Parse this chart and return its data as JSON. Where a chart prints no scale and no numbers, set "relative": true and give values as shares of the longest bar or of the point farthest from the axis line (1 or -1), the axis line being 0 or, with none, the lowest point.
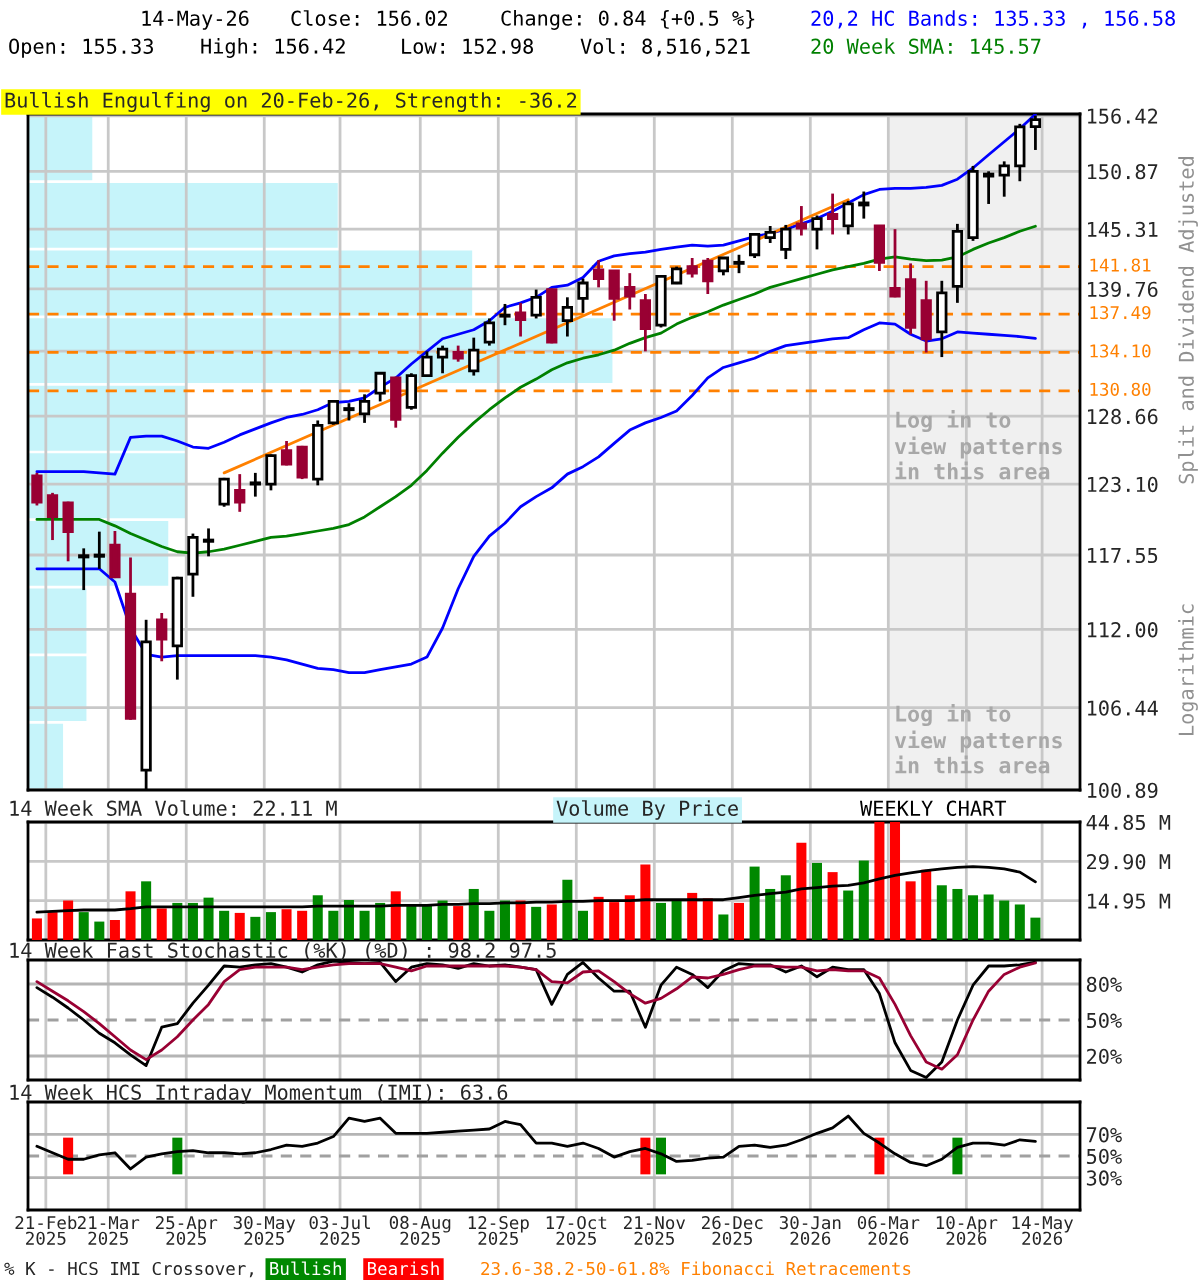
{
  "chart_data": [
    {
      "type": "candlestick",
      "title": "Bullish Engulfing on 20-Feb-26, Strength: -36.2",
      "ylabel": "Split and Dividend Adjusted",
      "annotations": [
        "14-May-26",
        "Close: 156.02",
        "Change: 0.84 {+0.5 %}",
        "Open: 155.33",
        "High: 156.42",
        "Low: 152.98",
        "Vol: 8,516,521",
        "Log in to\nview patterns\nin this area",
        "Log in to\nview patterns\nin this area",
        "Logarithmic"
      ],
      "x": [
        "2025-02-17",
        "2025-02-24",
        "2025-03-03",
        "2025-03-10",
        "2025-03-17",
        "2025-03-24",
        "2025-03-31",
        "2025-04-07",
        "2025-04-14",
        "2025-04-21",
        "2025-04-28",
        "2025-05-05",
        "2025-05-12",
        "2025-05-19",
        "2025-05-26",
        "2025-06-02",
        "2025-06-09",
        "2025-06-16",
        "2025-06-23",
        "2025-06-30",
        "2025-07-07",
        "2025-07-14",
        "2025-07-21",
        "2025-07-28",
        "2025-08-04",
        "2025-08-11",
        "2025-08-18",
        "2025-08-25",
        "2025-09-01",
        "2025-09-08",
        "2025-09-15",
        "2025-09-22",
        "2025-09-29",
        "2025-10-06",
        "2025-10-13",
        "2025-10-20",
        "2025-10-27",
        "2025-11-03",
        "2025-11-10",
        "2025-11-17",
        "2025-11-24",
        "2025-12-01",
        "2025-12-08",
        "2025-12-15",
        "2025-12-22",
        "2025-12-29",
        "2026-01-05",
        "2026-01-12",
        "2026-01-19",
        "2026-01-26",
        "2026-02-02",
        "2026-02-09",
        "2026-02-16",
        "2026-02-23",
        "2026-03-02",
        "2026-03-09",
        "2026-03-16",
        "2026-03-23",
        "2026-03-30",
        "2026-04-06",
        "2026-04-13",
        "2026-04-20",
        "2026-04-27",
        "2026-05-04",
        "2026-05-11"
      ],
      "ohlc": [
        [
          123.75,
          124.0,
          121.4,
          121.66
        ],
        [
          122.17,
          122.4,
          118.7,
          120.53
        ],
        [
          121.6,
          121.7,
          117.07,
          119.35
        ],
        [
          117.4,
          118.06,
          114.9,
          117.5
        ],
        [
          117.45,
          119.35,
          116.5,
          117.55
        ],
        [
          118.3,
          119.4,
          115.8,
          115.9
        ],
        [
          114.6,
          117.36,
          105.6,
          105.7
        ],
        [
          102.2,
          112.7,
          100.9,
          111.1
        ],
        [
          112.7,
          113.2,
          109.7,
          111.3
        ],
        [
          110.8,
          115.9,
          108.4,
          115.8
        ],
        [
          116.1,
          119.2,
          114.4,
          118.9
        ],
        [
          118.6,
          119.6,
          117.45,
          118.7
        ],
        [
          121.5,
          123.6,
          121.3,
          123.5
        ],
        [
          122.6,
          123.9,
          120.9,
          121.66
        ],
        [
          123.1,
          124.0,
          122.1,
          123.2
        ],
        [
          123.1,
          125.5,
          122.6,
          125.4
        ],
        [
          125.8,
          126.6,
          124.6,
          124.7
        ],
        [
          126.1,
          126.2,
          123.5,
          123.65
        ],
        [
          123.5,
          128.3,
          123.0,
          127.9
        ],
        [
          128.1,
          130.0,
          127.95,
          129.9
        ],
        [
          129.2,
          129.75,
          128.3,
          129.3
        ],
        [
          128.85,
          130.5,
          128.1,
          129.9
        ],
        [
          130.6,
          132.4,
          129.9,
          132.3
        ],
        [
          131.9,
          132.0,
          127.7,
          128.4
        ],
        [
          129.4,
          132.3,
          129.2,
          132.1
        ],
        [
          132.1,
          134.2,
          132.0,
          133.7
        ],
        [
          133.7,
          134.7,
          132.3,
          134.4
        ],
        [
          134.1,
          134.7,
          133.3,
          133.6
        ],
        [
          132.5,
          135.4,
          132.1,
          134.3
        ],
        [
          135.0,
          137.1,
          134.7,
          136.7
        ],
        [
          137.3,
          138.4,
          136.5,
          137.4
        ],
        [
          137.6,
          138.5,
          135.5,
          137.0
        ],
        [
          137.4,
          139.7,
          137.1,
          139.0
        ],
        [
          139.7,
          139.8,
          134.9,
          135.0
        ],
        [
          136.9,
          139.0,
          135.5,
          138.1
        ],
        [
          138.9,
          140.7,
          137.6,
          140.3
        ],
        [
          141.5,
          142.4,
          139.9,
          140.7
        ],
        [
          141.4,
          141.4,
          136.9,
          138.9
        ],
        [
          139.9,
          141.2,
          137.9,
          139.1
        ],
        [
          138.7,
          139.3,
          134.2,
          136.2
        ],
        [
          136.5,
          141.0,
          136.3,
          140.9
        ],
        [
          140.3,
          141.8,
          140.2,
          141.6
        ],
        [
          141.8,
          142.6,
          140.8,
          141.2
        ],
        [
          142.3,
          142.6,
          139.3,
          140.5
        ],
        [
          141.4,
          142.7,
          141.0,
          142.6
        ],
        [
          142.1,
          142.9,
          141.2,
          142.2
        ],
        [
          142.9,
          144.9,
          142.6,
          144.8
        ],
        [
          144.5,
          145.6,
          144.0,
          145.0
        ],
        [
          143.4,
          145.7,
          142.5,
          145.3
        ],
        [
          145.8,
          147.5,
          144.7,
          145.4
        ],
        [
          145.3,
          146.6,
          143.4,
          146.3
        ],
        [
          146.7,
          148.7,
          144.8,
          146.3
        ],
        [
          145.6,
          148.0,
          144.8,
          147.7
        ],
        [
          147.6,
          148.9,
          146.3,
          147.8
        ],
        [
          145.6,
          145.6,
          141.4,
          142.2
        ],
        [
          139.8,
          145.3,
          139.0,
          139.1
        ],
        [
          140.6,
          142.1,
          135.7,
          136.3
        ],
        [
          138.7,
          140.5,
          134.1,
          135.3
        ],
        [
          135.9,
          140.5,
          133.7,
          139.4
        ],
        [
          140.0,
          145.8,
          138.5,
          145.1
        ],
        [
          144.5,
          151.4,
          144.2,
          150.87
        ],
        [
          150.4,
          150.87,
          147.7,
          150.6
        ],
        [
          150.5,
          151.85,
          148.4,
          151.4
        ],
        [
          151.4,
          155.6,
          149.9,
          155.3
        ],
        [
          155.33,
          156.42,
          152.98,
          156.02
        ]
      ],
      "colors": [
        "#990033",
        "#990033",
        "#990033",
        "#ffffff",
        "#ffffff",
        "#990033",
        "#990033",
        "#ffffff",
        "#990033",
        "#ffffff",
        "#ffffff",
        "#ffffff",
        "#ffffff",
        "#990033",
        "#ffffff",
        "#ffffff",
        "#990033",
        "#990033",
        "#ffffff",
        "#ffffff",
        "#ffffff",
        "#ffffff",
        "#ffffff",
        "#990033",
        "#ffffff",
        "#ffffff",
        "#ffffff",
        "#990033",
        "#ffffff",
        "#ffffff",
        "#ffffff",
        "#990033",
        "#ffffff",
        "#990033",
        "#ffffff",
        "#ffffff",
        "#990033",
        "#990033",
        "#990033",
        "#990033",
        "#ffffff",
        "#ffffff",
        "#990033",
        "#990033",
        "#ffffff",
        "#ffffff",
        "#ffffff",
        "#ffffff",
        "#ffffff",
        "#990033",
        "#ffffff",
        "#990033",
        "#ffffff",
        "#ffffff",
        "#990033",
        "#990033",
        "#990033",
        "#990033",
        "#ffffff",
        "#ffffff",
        "#ffffff",
        "#ffffff",
        "#ffffff",
        "#ffffff",
        "#ffffff"
      ],
      "series": [
        {
          "type": "line",
          "name": "20,2 HC Bands: 135.33 , 156.58",
          "color": "#0000ff",
          "values": [
            124.1,
            124.1,
            124.1,
            124.1,
            124.0,
            123.9,
            126.9,
            127.0,
            127.0,
            126.6,
            126.1,
            126.0,
            126.5,
            127.1,
            127.6,
            128.1,
            128.55,
            128.8,
            129.2,
            129.8,
            129.9,
            130.2,
            131.1,
            131.9,
            133.1,
            134.2,
            135.3,
            135.7,
            136.1,
            136.9,
            138.1,
            138.5,
            139.0,
            139.9,
            140.1,
            140.8,
            142.3,
            142.8,
            143.0,
            143.15,
            143.4,
            143.6,
            143.8,
            143.7,
            143.8,
            144.2,
            144.6,
            144.9,
            145.3,
            145.8,
            146.3,
            147.0,
            147.8,
            148.6,
            149.1,
            149.2,
            149.2,
            149.3,
            149.5,
            150.1,
            151.2,
            152.5,
            153.8,
            155.1,
            156.58
          ]
        },
        {
          "type": "line",
          "color": "#0000ff",
          "values": [
            116.5,
            116.5,
            116.5,
            116.5,
            116.5,
            115.5,
            112.1,
            110.2,
            110.0,
            110.1,
            110.1,
            110.1,
            110.1,
            110.1,
            110.1,
            110.0,
            109.8,
            109.5,
            109.2,
            109.1,
            108.9,
            108.9,
            109.1,
            109.3,
            109.5,
            110.0,
            112.1,
            115.0,
            117.45,
            119.0,
            120.0,
            121.3,
            122.1,
            122.8,
            123.9,
            124.5,
            125.3,
            126.4,
            127.5,
            128.1,
            128.55,
            129.1,
            130.4,
            131.9,
            132.8,
            133.2,
            133.6,
            134.2,
            134.7,
            134.9,
            135.1,
            135.3,
            135.4,
            136.1,
            136.7,
            136.6,
            135.7,
            135.1,
            135.3,
            135.9,
            135.8,
            135.7,
            135.6,
            135.5,
            135.33
          ]
        },
        {
          "type": "line",
          "name": "20 Week SMA: 145.57",
          "color": "#008000",
          "values": [
            120.3,
            120.3,
            120.3,
            120.3,
            120.3,
            119.8,
            119.2,
            118.7,
            118.2,
            117.8,
            117.7,
            117.8,
            118.0,
            118.3,
            118.6,
            118.9,
            119.0,
            119.2,
            119.4,
            119.6,
            119.9,
            120.5,
            121.3,
            122.1,
            123.0,
            124.2,
            125.6,
            126.9,
            128.1,
            129.2,
            130.2,
            131.1,
            131.8,
            132.6,
            133.2,
            133.6,
            133.9,
            134.3,
            134.9,
            135.4,
            135.8,
            136.6,
            137.2,
            137.7,
            138.3,
            138.8,
            139.3,
            139.9,
            140.3,
            140.7,
            141.1,
            141.5,
            141.8,
            142.1,
            142.5,
            142.7,
            142.5,
            142.35,
            142.4,
            142.7,
            143.4,
            144.0,
            144.5,
            145.1,
            145.57
          ]
        },
        {
          "type": "line",
          "color": "#ff8000",
          "x": [
            "2025-05-12",
            "2026-02-16"
          ],
          "values": [
            124.0,
            148.1
          ]
        }
      ],
      "log": true,
      "ylim": [
        100.89,
        156.6
      ],
      "yticks": [
        100.89,
        106.44,
        {
          "value": 112,
          "label": "112.00"
        },
        117.55,
        {
          "value": 123.1,
          "label": "123.10"
        },
        128.66,
        {
          "value": 134.21,
          "label": null
        },
        139.76,
        145.31,
        150.87,
        156.42
      ],
      "xlim": [
        "2025-02-13",
        "2026-05-31"
      ],
      "xticks": [
        "2025-02-21",
        "2025-03-21",
        "2025-04-25",
        "2025-05-30",
        "2025-07-03",
        "2025-08-08",
        "2025-09-12",
        "2025-10-17",
        "2025-11-21",
        "2025-12-26",
        "2026-01-30",
        "2026-03-06",
        "2026-04-10",
        "2026-05-14"
      ],
      "tick_labels": "y",
      "grid": true,
      "legend": "top right",
      "ref_lines": [
        {
          "axis": "y",
          "value": 141.81,
          "label": "141.81",
          "color": "#ff8000",
          "line_style": "dashed"
        },
        {
          "axis": "y",
          "value": 137.49,
          "label": "137.49",
          "color": "#ff8000",
          "line_style": "dashed"
        },
        {
          "axis": "y",
          "value": 134.1,
          "label": "134.10",
          "color": "#ff8000",
          "line_style": "dashed"
        },
        {
          "axis": "y",
          "value": 130.8,
          "label": "130.80",
          "color": "#ff8000",
          "line_style": "dashed"
        }
      ],
      "bands": [
        {
          "axis": "x",
          "from": "2026-03-06",
          "to": "2026-05-31",
          "color": "#f0f0f0"
        }
      ]
    },
    {
      "type": "bar",
      "orientation": "horizontal",
      "relative": true,
      "title": "Volume By Price",
      "tick_labels": false,
      "color": "#c6f4fa",
      "categories": [
        null,
        null,
        null,
        null,
        null,
        null,
        null,
        null,
        null,
        null
      ],
      "values": [
        0.11,
        0.53,
        0.76,
        1,
        0.27,
        0.27,
        0.24,
        0.1,
        0.1,
        0.06
      ]
    },
    {
      "type": "bar",
      "title": "14 Week SMA Volume: 22.11 M",
      "annotations": [
        "WEEKLY CHART"
      ],
      "x": [
        "2025-02-17",
        "2025-02-24",
        "2025-03-03",
        "2025-03-10",
        "2025-03-17",
        "2025-03-24",
        "2025-03-31",
        "2025-04-07",
        "2025-04-14",
        "2025-04-21",
        "2025-04-28",
        "2025-05-05",
        "2025-05-12",
        "2025-05-19",
        "2025-05-26",
        "2025-06-02",
        "2025-06-09",
        "2025-06-16",
        "2025-06-23",
        "2025-06-30",
        "2025-07-07",
        "2025-07-14",
        "2025-07-21",
        "2025-07-28",
        "2025-08-04",
        "2025-08-11",
        "2025-08-18",
        "2025-08-25",
        "2025-09-01",
        "2025-09-08",
        "2025-09-15",
        "2025-09-22",
        "2025-09-29",
        "2025-10-06",
        "2025-10-13",
        "2025-10-20",
        "2025-10-27",
        "2025-11-03",
        "2025-11-10",
        "2025-11-17",
        "2025-11-24",
        "2025-12-01",
        "2025-12-08",
        "2025-12-15",
        "2025-12-22",
        "2025-12-29",
        "2026-01-05",
        "2026-01-12",
        "2026-01-19",
        "2026-01-26",
        "2026-02-02",
        "2026-02-09",
        "2026-02-16",
        "2026-02-23",
        "2026-03-02",
        "2026-03-09",
        "2026-03-16",
        "2026-03-23",
        "2026-03-30",
        "2026-04-06",
        "2026-04-13",
        "2026-04-20",
        "2026-04-27",
        "2026-05-04",
        "2026-05-11"
      ],
      "series": [
        {
          "type": "bar",
          "colors": [
            "#ff0000",
            "#ff0000",
            "#ff0000",
            "#008800",
            "#008800",
            "#ff0000",
            "#ff0000",
            "#008800",
            "#ff0000",
            "#008800",
            "#008800",
            "#008800",
            "#008800",
            "#ff0000",
            "#008800",
            "#008800",
            "#ff0000",
            "#ff0000",
            "#008800",
            "#008800",
            "#008800",
            "#008800",
            "#008800",
            "#ff0000",
            "#008800",
            "#008800",
            "#008800",
            "#ff0000",
            "#008800",
            "#008800",
            "#008800",
            "#ff0000",
            "#008800",
            "#ff0000",
            "#008800",
            "#008800",
            "#ff0000",
            "#ff0000",
            "#ff0000",
            "#ff0000",
            "#008800",
            "#008800",
            "#ff0000",
            "#ff0000",
            "#008800",
            "#ff0000",
            "#008800",
            "#008800",
            "#008800",
            "#ff0000",
            "#008800",
            "#ff0000",
            "#008800",
            "#008800",
            "#ff0000",
            "#ff0000",
            "#ff0000",
            "#ff0000",
            "#008800",
            "#008800",
            "#008800",
            "#008800",
            "#008800",
            "#008800",
            "#008800"
          ],
          "values": [
            8.2,
            10.6,
            15.0,
            10.6,
            7.0,
            7.6,
            18.5,
            22.3,
            12.0,
            14.1,
            14.1,
            16.1,
            11.1,
            10.3,
            8.8,
            10.6,
            11.7,
            11.1,
            17.0,
            11.1,
            15.2,
            11.1,
            14.1,
            18.5,
            12.9,
            13.5,
            15.0,
            12.9,
            19.4,
            11.1,
            15.0,
            15.0,
            12.6,
            13.5,
            22.9,
            11.1,
            16.4,
            14.4,
            17.0,
            28.7,
            14.1,
            15.5,
            17.9,
            15.8,
            9.7,
            14.1,
            27.9,
            19.4,
            24.6,
            37.0,
            29.3,
            25.8,
            18.8,
            30.2,
            44.85,
            44.85,
            22.3,
            26.7,
            20.8,
            19.4,
            17.0,
            17.3,
            15.0,
            13.5,
            8.5
          ]
        },
        {
          "type": "line",
          "color": "#000000",
          "values": [
            10.6,
            10.9,
            11.2,
            11.4,
            11.4,
            11.4,
            11.9,
            12.6,
            12.6,
            12.6,
            12.6,
            12.6,
            12.6,
            12.6,
            12.6,
            12.6,
            12.6,
            12.6,
            12.9,
            12.9,
            12.9,
            12.9,
            12.9,
            13.2,
            13.2,
            13.2,
            13.5,
            13.5,
            13.8,
            13.8,
            14.1,
            14.1,
            14.4,
            14.4,
            14.7,
            14.7,
            15.0,
            15.0,
            15.0,
            15.3,
            15.3,
            15.3,
            15.3,
            15.3,
            15.3,
            16.1,
            17.0,
            17.6,
            18.2,
            19.4,
            19.9,
            20.5,
            20.8,
            21.7,
            23.2,
            24.6,
            25.5,
            26.4,
            27.0,
            27.6,
            27.9,
            27.6,
            27.0,
            25.8,
            22.11
          ]
        }
      ],
      "ylim": [
        0,
        44.85
      ],
      "yticks": [
        {
          "value": 14.95,
          "label": "14.95 M"
        },
        {
          "value": 29.9,
          "label": "29.90 M"
        },
        {
          "value": 44.85,
          "label": "44.85 M"
        }
      ],
      "xlim": [
        "2025-02-13",
        "2026-05-31"
      ],
      "xticks": [
        "2025-02-21",
        "2025-03-21",
        "2025-04-25",
        "2025-05-30",
        "2025-07-03",
        "2025-08-08",
        "2025-09-12",
        "2025-10-17",
        "2025-11-21",
        "2025-12-26",
        "2026-01-30",
        "2026-03-06",
        "2026-04-10",
        "2026-05-14"
      ],
      "tick_labels": "y",
      "grid": true
    },
    {
      "type": "line",
      "title": "14 Week Fast Stochastic (%K) (%D) : 98.2 97.5",
      "x": [
        "2025-02-17",
        "2025-02-24",
        "2025-03-03",
        "2025-03-10",
        "2025-03-17",
        "2025-03-24",
        "2025-03-31",
        "2025-04-07",
        "2025-04-14",
        "2025-04-21",
        "2025-04-28",
        "2025-05-05",
        "2025-05-12",
        "2025-05-19",
        "2025-05-26",
        "2025-06-02",
        "2025-06-09",
        "2025-06-16",
        "2025-06-23",
        "2025-06-30",
        "2025-07-07",
        "2025-07-14",
        "2025-07-21",
        "2025-07-28",
        "2025-08-04",
        "2025-08-11",
        "2025-08-18",
        "2025-08-25",
        "2025-09-01",
        "2025-09-08",
        "2025-09-15",
        "2025-09-22",
        "2025-09-29",
        "2025-10-06",
        "2025-10-13",
        "2025-10-20",
        "2025-10-27",
        "2025-11-03",
        "2025-11-10",
        "2025-11-17",
        "2025-11-24",
        "2025-12-01",
        "2025-12-08",
        "2025-12-15",
        "2025-12-22",
        "2025-12-29",
        "2026-01-05",
        "2026-01-12",
        "2026-01-19",
        "2026-01-26",
        "2026-02-02",
        "2026-02-09",
        "2026-02-16",
        "2026-02-23",
        "2026-03-02",
        "2026-03-09",
        "2026-03-16",
        "2026-03-23",
        "2026-03-30",
        "2026-04-06",
        "2026-04-13",
        "2026-04-20",
        "2026-04-27",
        "2026-05-04",
        "2026-05-11"
      ],
      "series": [
        {
          "color": "#000000",
          "values": [
            77,
            69,
            60,
            50,
            39,
            31,
            21,
            12,
            44,
            47,
            64,
            79,
            95,
            94,
            96,
            97,
            94,
            90,
            96,
            99,
            98,
            97,
            98,
            82,
            94,
            97,
            96,
            93,
            97,
            95,
            96,
            94,
            92,
            63,
            88,
            98,
            85,
            74,
            74,
            44,
            79,
            94,
            88,
            77,
            91,
            97,
            96,
            96,
            90,
            95,
            86,
            94,
            92,
            92,
            72,
            31,
            8,
            2,
            15,
            50,
            79,
            95,
            95,
            96,
            98.2
          ]
        },
        {
          "color": "#990033",
          "values": [
            82,
            74,
            66,
            57,
            47,
            36,
            25,
            17,
            25,
            36,
            50,
            63,
            82,
            92,
            94,
            94,
            94,
            92,
            94,
            96,
            97,
            97,
            97,
            94,
            91,
            95,
            95,
            95,
            95,
            95,
            95,
            94,
            92,
            82,
            81,
            90,
            91,
            82,
            72,
            64,
            68,
            76,
            86,
            85,
            88,
            92,
            95,
            95,
            94,
            94,
            91,
            92,
            91,
            91,
            85,
            63,
            37,
            15,
            9,
            21,
            50,
            74,
            88,
            94,
            97.5
          ]
        }
      ],
      "ylim": [
        0,
        100
      ],
      "yticks": [
        {
          "value": 20,
          "label": "20%"
        },
        {
          "value": 50,
          "label": "50%"
        },
        {
          "value": 80,
          "label": "80%"
        }
      ],
      "xlim": [
        "2025-02-13",
        "2026-05-31"
      ],
      "xticks": [
        "2025-02-21",
        "2025-03-21",
        "2025-04-25",
        "2025-05-30",
        "2025-07-03",
        "2025-08-08",
        "2025-09-12",
        "2025-10-17",
        "2025-11-21",
        "2025-12-26",
        "2026-01-30",
        "2026-03-06",
        "2026-04-10",
        "2026-05-14"
      ],
      "tick_labels": "y",
      "grid": "x",
      "ref_lines": [
        {
          "axis": "y",
          "value": 20,
          "color": "#b4b4b4"
        },
        {
          "axis": "y",
          "value": 50,
          "color": "#a0a0a0",
          "line_style": "dashed"
        },
        {
          "axis": "y",
          "value": 80,
          "color": "#b4b4b4"
        }
      ]
    },
    {
      "type": "line",
      "title": "14 Week HCS Intraday Momentum (IMI): 63.6",
      "annotations": [
        "23.6-38.2-50-61.8% Fibonacci Retracements"
      ],
      "legend": "bottom",
      "legend_title": "% K - HCS IMI Crossover,",
      "x": [
        "2025-02-17",
        "2025-02-24",
        "2025-03-03",
        "2025-03-10",
        "2025-03-17",
        "2025-03-24",
        "2025-03-31",
        "2025-04-07",
        "2025-04-14",
        "2025-04-21",
        "2025-04-28",
        "2025-05-05",
        "2025-05-12",
        "2025-05-19",
        "2025-05-26",
        "2025-06-02",
        "2025-06-09",
        "2025-06-16",
        "2025-06-23",
        "2025-06-30",
        "2025-07-07",
        "2025-07-14",
        "2025-07-21",
        "2025-07-28",
        "2025-08-04",
        "2025-08-11",
        "2025-08-18",
        "2025-08-25",
        "2025-09-01",
        "2025-09-08",
        "2025-09-15",
        "2025-09-22",
        "2025-09-29",
        "2025-10-06",
        "2025-10-13",
        "2025-10-20",
        "2025-10-27",
        "2025-11-03",
        "2025-11-10",
        "2025-11-17",
        "2025-11-24",
        "2025-12-01",
        "2025-12-08",
        "2025-12-15",
        "2025-12-22",
        "2025-12-29",
        "2026-01-05",
        "2026-01-12",
        "2026-01-19",
        "2026-01-26",
        "2026-02-02",
        "2026-02-09",
        "2026-02-16",
        "2026-02-23",
        "2026-03-02",
        "2026-03-09",
        "2026-03-16",
        "2026-03-23",
        "2026-03-30",
        "2026-04-06",
        "2026-04-13",
        "2026-04-20",
        "2026-04-27",
        "2026-05-04",
        "2026-05-11"
      ],
      "series": [
        {
          "type": "bar",
          "name": "Bullish",
          "color": "#008800",
          "x": [
            "2025-04-21",
            "2025-11-24",
            "2026-04-06"
          ],
          "base": [
            33,
            33,
            33
          ],
          "values": [
            34,
            34,
            34
          ]
        },
        {
          "type": "bar",
          "name": "Bearish",
          "color": "#ff0000",
          "x": [
            "2025-03-03",
            "2025-11-17",
            "2026-03-02"
          ],
          "base": [
            33,
            33,
            33
          ],
          "values": [
            34,
            34,
            34
          ]
        },
        {
          "type": "line",
          "color": "#000000",
          "values": [
            59,
            53,
            47,
            47,
            51,
            53,
            38,
            49,
            52,
            54,
            55,
            53,
            53,
            52,
            53,
            56,
            60,
            59,
            62,
            68,
            85,
            82,
            85,
            71,
            71,
            71,
            72,
            73,
            74,
            75,
            82,
            79,
            62,
            62,
            59,
            62,
            57,
            49,
            54,
            57,
            52,
            45,
            46,
            48,
            49,
            59,
            60,
            58,
            60,
            65,
            71,
            76,
            87,
            71,
            62,
            52,
            44,
            41,
            47,
            58,
            62,
            62,
            60,
            65,
            63.6
          ]
        }
      ],
      "ylim": [
        0,
        100
      ],
      "yticks": [
        {
          "value": 30,
          "label": "30%"
        },
        {
          "value": 50,
          "label": "50%"
        },
        {
          "value": 70,
          "label": "70%"
        }
      ],
      "xlim": [
        "2025-02-13",
        "2026-05-31"
      ],
      "xticks": [
        {
          "value": "2025-02-21",
          "label": "21-Feb\n2025"
        },
        {
          "value": "2025-03-21",
          "label": "21-Mar\n2025"
        },
        {
          "value": "2025-04-25",
          "label": "25-Apr\n2025"
        },
        {
          "value": "2025-05-30",
          "label": "30-May\n2025"
        },
        {
          "value": "2025-07-03",
          "label": "03-Jul\n2025"
        },
        {
          "value": "2025-08-08",
          "label": "08-Aug\n2025"
        },
        {
          "value": "2025-09-12",
          "label": "12-Sep\n2025"
        },
        {
          "value": "2025-10-17",
          "label": "17-Oct\n2025"
        },
        {
          "value": "2025-11-21",
          "label": "21-Nov\n2025"
        },
        {
          "value": "2025-12-26",
          "label": "26-Dec\n2025"
        },
        {
          "value": "2026-01-30",
          "label": "30-Jan\n2026"
        },
        {
          "value": "2026-03-06",
          "label": "06-Mar\n2026"
        },
        {
          "value": "2026-04-10",
          "label": "10-Apr\n2026"
        },
        {
          "value": "2026-05-14",
          "label": "14-May\n2026"
        }
      ],
      "grid": "x",
      "ref_lines": [
        {
          "axis": "y",
          "value": 30,
          "color": "#b4b4b4"
        },
        {
          "axis": "y",
          "value": 50,
          "color": "#a0a0a0",
          "line_style": "dashed"
        },
        {
          "axis": "y",
          "value": 70,
          "color": "#b4b4b4"
        }
      ]
    }
  ]
}
